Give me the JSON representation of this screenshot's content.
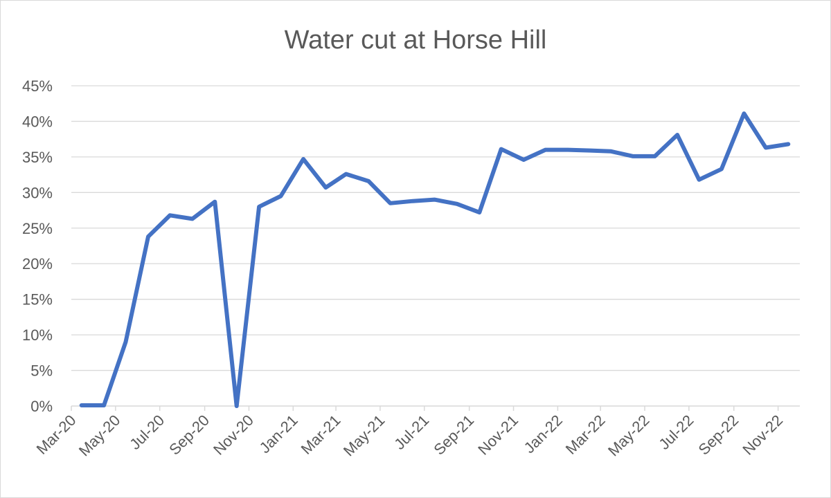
{
  "chart_data": {
    "type": "line",
    "title": "Water cut at Horse Hill",
    "xlabel": "",
    "ylabel": "",
    "y_unit": "%",
    "ylim": [
      0,
      45
    ],
    "y_ticks": [
      "0%",
      "5%",
      "10%",
      "15%",
      "20%",
      "25%",
      "30%",
      "35%",
      "40%",
      "45%"
    ],
    "x_tick_labels": [
      "Mar-20",
      "May-20",
      "Jul-20",
      "Sep-20",
      "Nov-20",
      "Jan-21",
      "Mar-21",
      "May-21",
      "Jul-21",
      "Sep-21",
      "Nov-21",
      "Jan-22",
      "Mar-22",
      "May-22",
      "Jul-22",
      "Sep-22",
      "Nov-22"
    ],
    "grid": "horizontal",
    "legend": "none",
    "line_color": "#4472c4",
    "series": [
      {
        "x": [
          "2020-03-15",
          "2020-04-15",
          "2020-05-15",
          "2020-06-15",
          "2020-07-15",
          "2020-08-15",
          "2020-09-15",
          "2020-10-15",
          "2020-11-15",
          "2020-12-15",
          "2021-01-15",
          "2021-02-15",
          "2021-03-15",
          "2021-04-15",
          "2021-05-15",
          "2021-06-15",
          "2021-07-15",
          "2021-08-15",
          "2021-09-15",
          "2021-10-15",
          "2021-11-15",
          "2021-12-15",
          "2022-01-15",
          "2022-02-15",
          "2022-03-15",
          "2022-04-15",
          "2022-05-15",
          "2022-06-15",
          "2022-07-15",
          "2022-08-15",
          "2022-09-15",
          "2022-10-15",
          "2022-11-15"
        ],
        "values": [
          0.1,
          0.1,
          9.0,
          23.8,
          26.8,
          26.3,
          28.7,
          0.0,
          28.0,
          29.5,
          34.7,
          30.7,
          32.6,
          31.6,
          28.5,
          28.8,
          29.0,
          28.4,
          27.2,
          36.1,
          34.6,
          36.0,
          36.0,
          35.9,
          35.8,
          35.1,
          35.1,
          38.1,
          31.8,
          33.3,
          41.1,
          36.3,
          36.8
        ]
      }
    ]
  }
}
